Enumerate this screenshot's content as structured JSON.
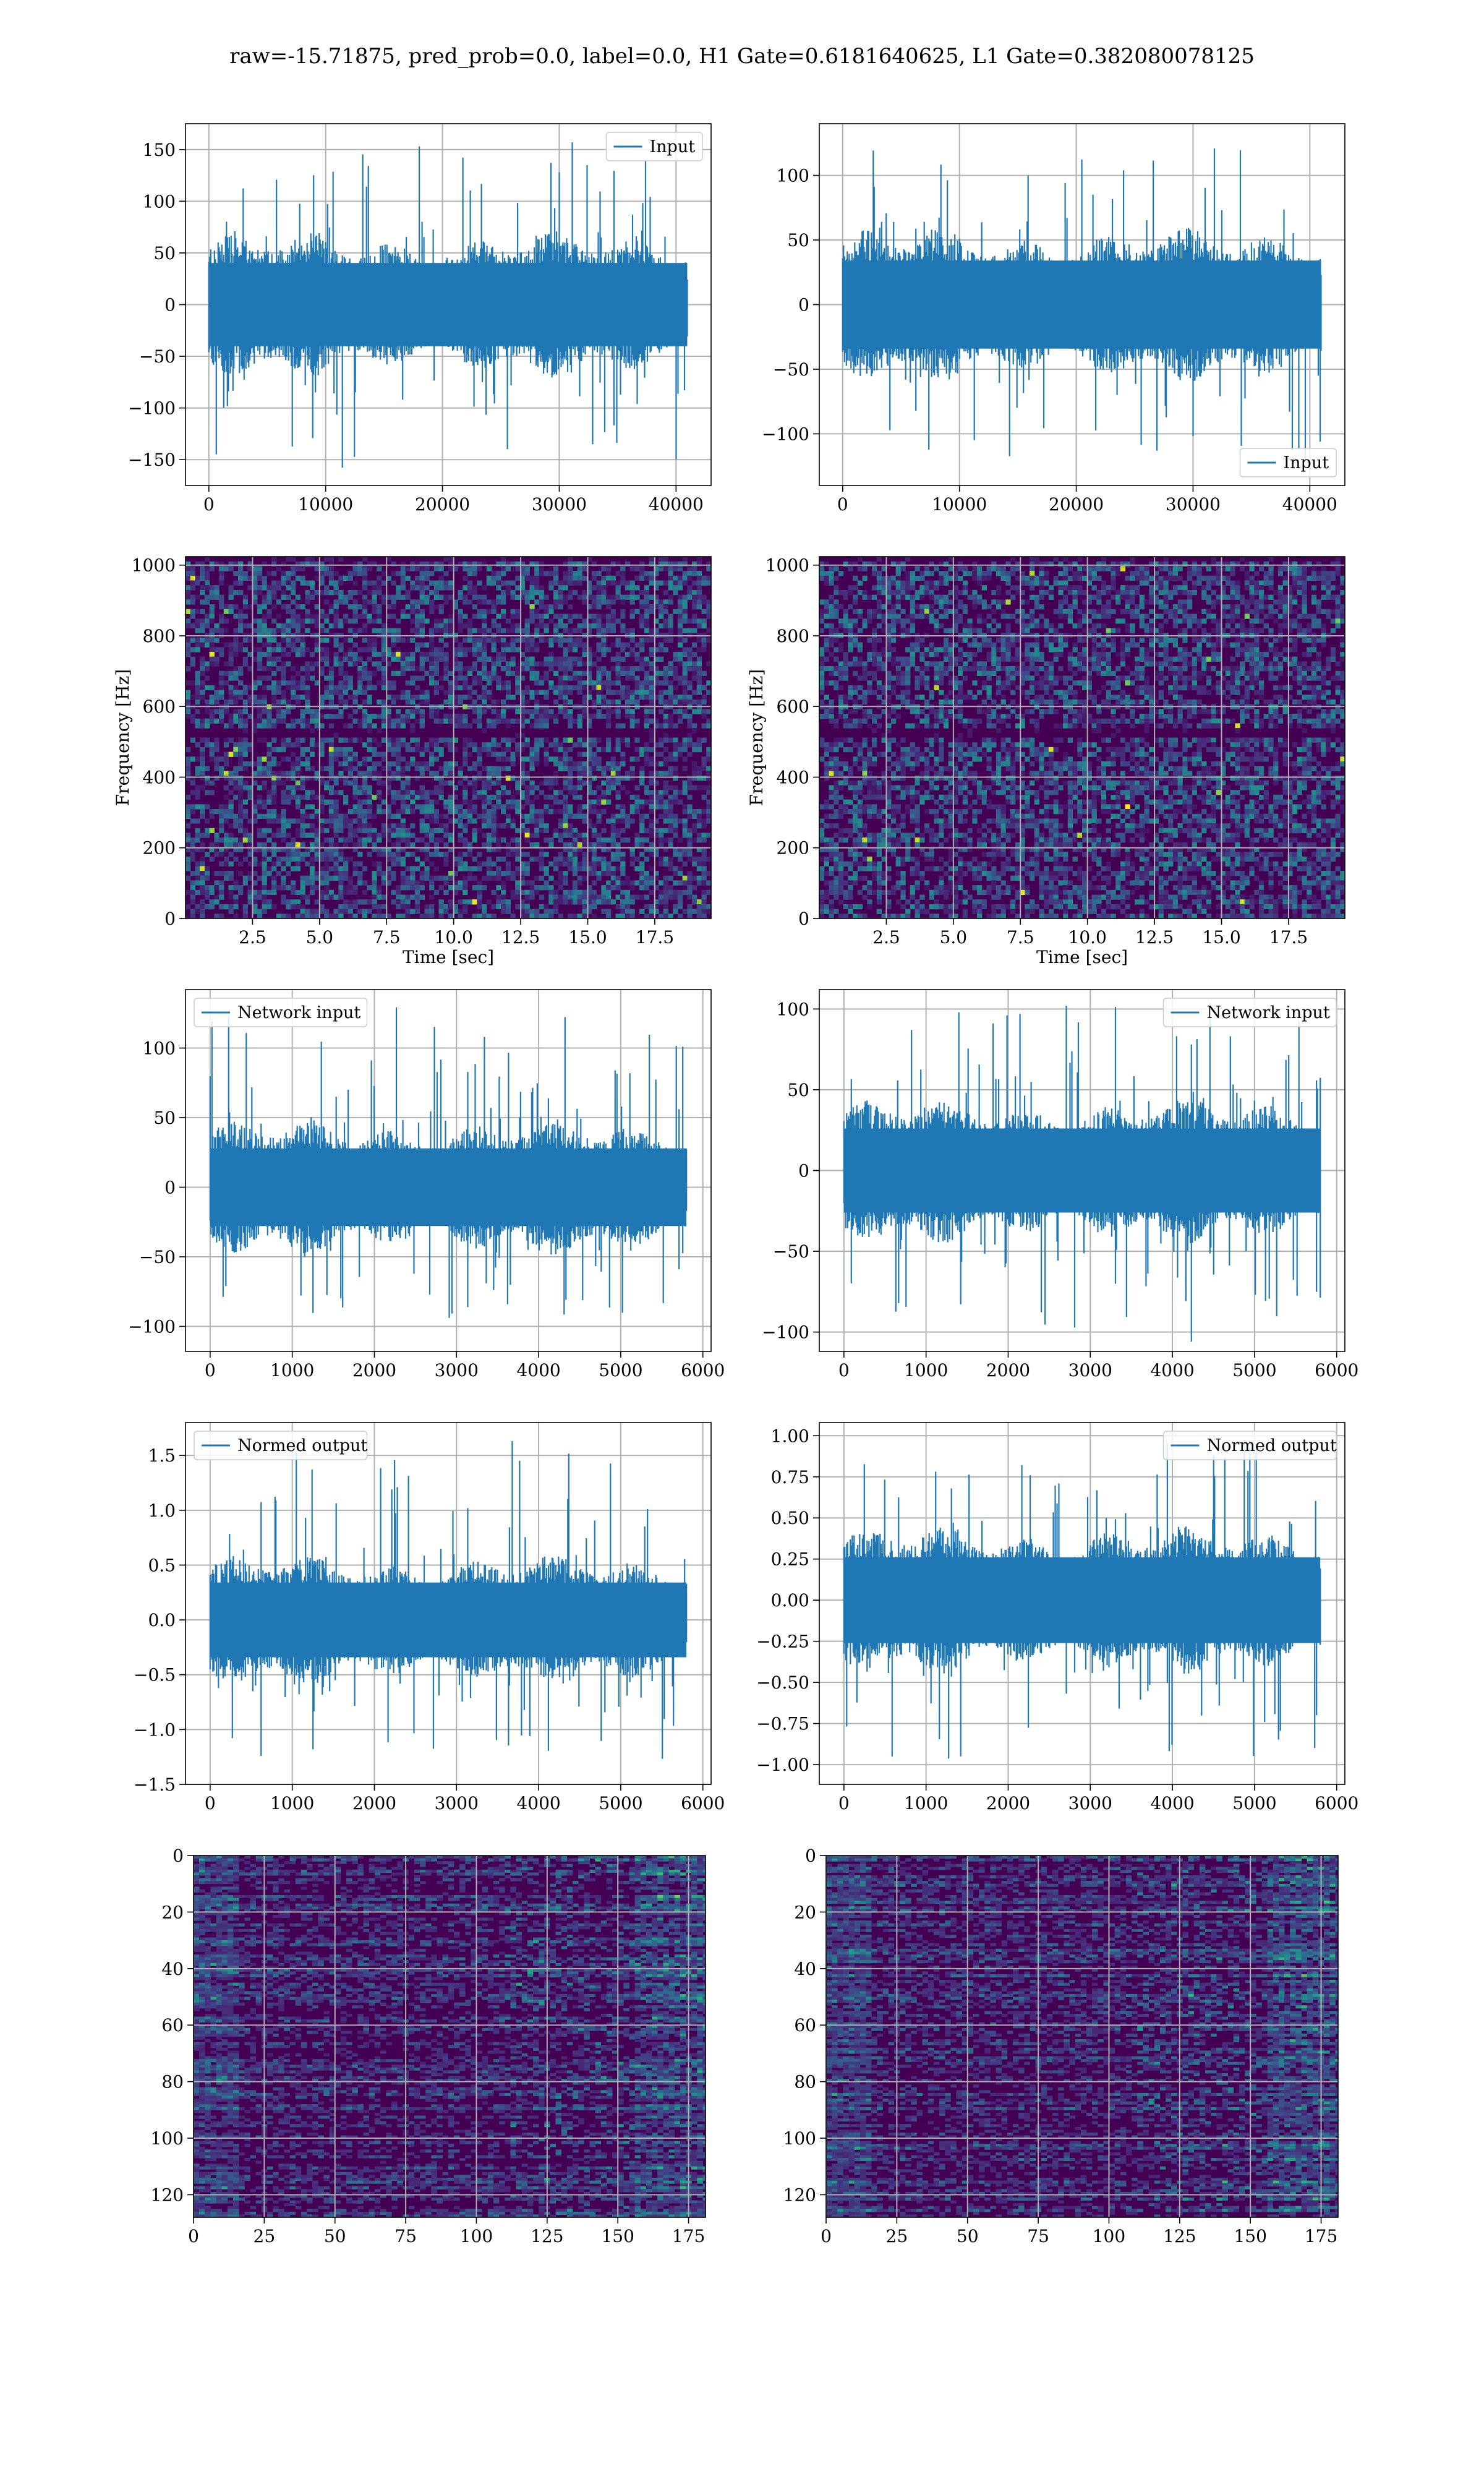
{
  "figure": {
    "title": "raw=-15.71875, pred_prob=0.0, label=0.0, H1 Gate=0.6181640625, L1 Gate=0.382080078125"
  },
  "colors": {
    "series": "#1f77b4",
    "grid": "#b0b0b0",
    "spine": "#000000",
    "viridis_dark": "#440154"
  },
  "chart_data": [
    {
      "id": "h1-input",
      "type": "line",
      "xlim": [
        -2000,
        43000
      ],
      "ylim": [
        -175,
        175
      ],
      "xticks": [
        0,
        10000,
        20000,
        30000,
        40000
      ],
      "yticks": [
        -150,
        -100,
        -50,
        0,
        50,
        100,
        150
      ],
      "xlabel": "",
      "ylabel": "",
      "legend": {
        "label": "Input",
        "position": "top-right"
      },
      "series": [
        {
          "name": "Input",
          "x_range": [
            0,
            40960
          ],
          "n_points": 40960,
          "band_min": -65,
          "band_max": 65,
          "min": -160,
          "max": 160
        }
      ],
      "grid": true
    },
    {
      "id": "l1-input",
      "type": "line",
      "xlim": [
        -2000,
        43000
      ],
      "ylim": [
        -140,
        140
      ],
      "xticks": [
        0,
        10000,
        20000,
        30000,
        40000
      ],
      "yticks": [
        -100,
        -50,
        0,
        50,
        100
      ],
      "xlabel": "",
      "ylabel": "",
      "legend": {
        "label": "Input",
        "position": "bottom-right"
      },
      "series": [
        {
          "name": "Input",
          "x_range": [
            0,
            40960
          ],
          "n_points": 40960,
          "band_min": -55,
          "band_max": 55,
          "min": -125,
          "max": 125
        }
      ],
      "grid": true
    },
    {
      "id": "h1-spectrogram",
      "type": "heatmap",
      "xlim": [
        0,
        19.6
      ],
      "ylim": [
        0,
        1024
      ],
      "xticks": [
        2.5,
        5.0,
        7.5,
        10.0,
        12.5,
        15.0,
        17.5
      ],
      "yticks": [
        0,
        200,
        400,
        600,
        800,
        1000
      ],
      "xlabel": "Time [sec]",
      "ylabel": "Frequency [Hz]",
      "colormap": "viridis",
      "grid": true
    },
    {
      "id": "l1-spectrogram",
      "type": "heatmap",
      "xlim": [
        0,
        19.6
      ],
      "ylim": [
        0,
        1024
      ],
      "xticks": [
        2.5,
        5.0,
        7.5,
        10.0,
        12.5,
        15.0,
        17.5
      ],
      "yticks": [
        0,
        200,
        400,
        600,
        800,
        1000
      ],
      "xlabel": "Time [sec]",
      "ylabel": "Frequency [Hz]",
      "colormap": "viridis",
      "grid": true
    },
    {
      "id": "h1-network-input",
      "type": "line",
      "xlim": [
        -300,
        6100
      ],
      "ylim": [
        -118,
        142
      ],
      "xticks": [
        0,
        1000,
        2000,
        3000,
        4000,
        5000,
        6000
      ],
      "yticks": [
        -100,
        -50,
        0,
        50,
        100
      ],
      "xlabel": "",
      "ylabel": "",
      "legend": {
        "label": "Network input",
        "position": "top-left"
      },
      "series": [
        {
          "name": "Network input",
          "x_range": [
            0,
            5800
          ],
          "n_points": 5800,
          "band_min": -45,
          "band_max": 45,
          "min": -105,
          "max": 130
        }
      ],
      "grid": true
    },
    {
      "id": "l1-network-input",
      "type": "line",
      "xlim": [
        -300,
        6100
      ],
      "ylim": [
        -112,
        112
      ],
      "xticks": [
        0,
        1000,
        2000,
        3000,
        4000,
        5000,
        6000
      ],
      "yticks": [
        -100,
        -50,
        0,
        50,
        100
      ],
      "xlabel": "",
      "ylabel": "",
      "legend": {
        "label": "Network input",
        "position": "top-right"
      },
      "series": [
        {
          "name": "Network input",
          "x_range": [
            0,
            5800
          ],
          "n_points": 5800,
          "band_min": -42,
          "band_max": 42,
          "min": -108,
          "max": 105
        }
      ],
      "grid": true
    },
    {
      "id": "h1-normed-output",
      "type": "line",
      "xlim": [
        -300,
        6100
      ],
      "ylim": [
        -1.5,
        1.8
      ],
      "xticks": [
        0,
        1000,
        2000,
        3000,
        4000,
        5000,
        6000
      ],
      "yticks": [
        -1.5,
        -1.0,
        -0.5,
        0.0,
        0.5,
        1.0,
        1.5
      ],
      "ytick_labels": [
        "−1.5",
        "−1.0",
        "−0.5",
        "0.0",
        "0.5",
        "1.0",
        "1.5"
      ],
      "xlabel": "",
      "ylabel": "",
      "legend": {
        "label": "Normed output",
        "position": "top-left"
      },
      "series": [
        {
          "name": "Normed output",
          "x_range": [
            0,
            5800
          ],
          "n_points": 5800,
          "band_min": -0.55,
          "band_max": 0.55,
          "min": -1.35,
          "max": 1.65
        }
      ],
      "grid": true
    },
    {
      "id": "l1-normed-output",
      "type": "line",
      "xlim": [
        -300,
        6100
      ],
      "ylim": [
        -1.12,
        1.08
      ],
      "xticks": [
        0,
        1000,
        2000,
        3000,
        4000,
        5000,
        6000
      ],
      "yticks": [
        -1.0,
        -0.75,
        -0.5,
        -0.25,
        0.0,
        0.25,
        0.5,
        0.75,
        1.0
      ],
      "ytick_labels": [
        "−1.00",
        "−0.75",
        "−0.50",
        "−0.25",
        "0.00",
        "0.25",
        "0.50",
        "0.75",
        "1.00"
      ],
      "xlabel": "",
      "ylabel": "",
      "legend": {
        "label": "Normed output",
        "position": "top-right"
      },
      "series": [
        {
          "name": "Normed output",
          "x_range": [
            0,
            5800
          ],
          "n_points": 5800,
          "band_min": -0.42,
          "band_max": 0.42,
          "min": -1.0,
          "max": 1.0
        }
      ],
      "grid": true
    },
    {
      "id": "h1-feature-map",
      "type": "heatmap",
      "xlim": [
        0,
        181
      ],
      "ylim": [
        128,
        0
      ],
      "xticks": [
        0,
        25,
        50,
        75,
        100,
        125,
        150,
        175
      ],
      "yticks": [
        0,
        20,
        40,
        60,
        80,
        100,
        120
      ],
      "xlabel": "",
      "ylabel": "",
      "colormap": "viridis",
      "grid": true
    },
    {
      "id": "l1-feature-map",
      "type": "heatmap",
      "xlim": [
        0,
        181
      ],
      "ylim": [
        128,
        0
      ],
      "xticks": [
        0,
        25,
        50,
        75,
        100,
        125,
        150,
        175
      ],
      "yticks": [
        0,
        20,
        40,
        60,
        80,
        100,
        120
      ],
      "xlabel": "",
      "ylabel": "",
      "colormap": "viridis",
      "grid": true
    }
  ]
}
